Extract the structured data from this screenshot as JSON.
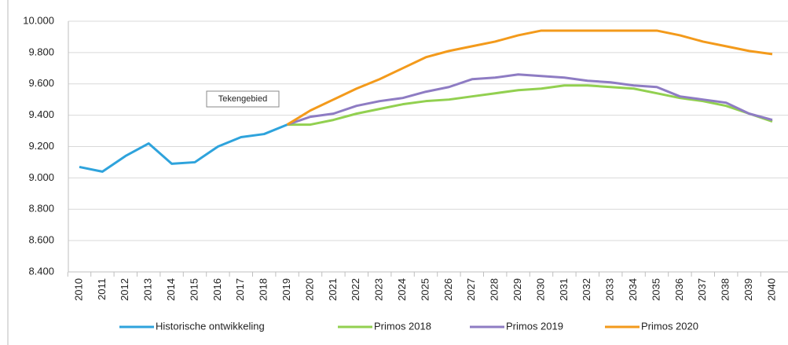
{
  "chart_data": {
    "type": "line",
    "annotation": "Tekengebied",
    "categories": [
      "2010",
      "2011",
      "2012",
      "2013",
      "2014",
      "2015",
      "2016",
      "2017",
      "2018",
      "2019",
      "2020",
      "2021",
      "2022",
      "2023",
      "2024",
      "2025",
      "2026",
      "2027",
      "2028",
      "2029",
      "2030",
      "2031",
      "2032",
      "2033",
      "2034",
      "2035",
      "2036",
      "2037",
      "2038",
      "2039",
      "2040"
    ],
    "series": [
      {
        "name": "Historische ontwikkeling",
        "color": "#2ea3dc",
        "values": [
          9070,
          9040,
          9140,
          9220,
          9090,
          9100,
          9200,
          9260,
          9280,
          9340,
          null,
          null,
          null,
          null,
          null,
          null,
          null,
          null,
          null,
          null,
          null,
          null,
          null,
          null,
          null,
          null,
          null,
          null,
          null,
          null,
          null
        ]
      },
      {
        "name": "Primos 2018",
        "color": "#92d050",
        "values": [
          null,
          null,
          null,
          null,
          null,
          null,
          null,
          null,
          null,
          9340,
          9340,
          9370,
          9410,
          9440,
          9470,
          9490,
          9500,
          9520,
          9540,
          9560,
          9570,
          9590,
          9590,
          9580,
          9570,
          9540,
          9510,
          9490,
          9460,
          9410,
          9360
        ]
      },
      {
        "name": "Primos 2019",
        "color": "#8e7cc3",
        "values": [
          null,
          null,
          null,
          null,
          null,
          null,
          null,
          null,
          null,
          9340,
          9390,
          9410,
          9460,
          9490,
          9510,
          9550,
          9580,
          9630,
          9640,
          9660,
          9650,
          9640,
          9620,
          9610,
          9590,
          9580,
          9520,
          9500,
          9480,
          9410,
          9370
        ]
      },
      {
        "name": "Primos 2020",
        "color": "#f39a1b",
        "values": [
          null,
          null,
          null,
          null,
          null,
          null,
          null,
          null,
          null,
          9340,
          9430,
          9500,
          9570,
          9630,
          9700,
          9770,
          9810,
          9840,
          9870,
          9910,
          9940,
          9940,
          9940,
          9940,
          9940,
          9940,
          9910,
          9870,
          9840,
          9810,
          9790
        ]
      }
    ],
    "ylim": [
      8400,
      10000
    ],
    "yticks": [
      {
        "value": 8400,
        "label": "8.400"
      },
      {
        "value": 8600,
        "label": "8.600"
      },
      {
        "value": 8800,
        "label": "8.800"
      },
      {
        "value": 9000,
        "label": "9.000"
      },
      {
        "value": 9200,
        "label": "9.200"
      },
      {
        "value": 9400,
        "label": "9.400"
      },
      {
        "value": 9600,
        "label": "9.600"
      },
      {
        "value": 9800,
        "label": "9.800"
      },
      {
        "value": 10000,
        "label": "10.000"
      }
    ],
    "grid": true
  }
}
